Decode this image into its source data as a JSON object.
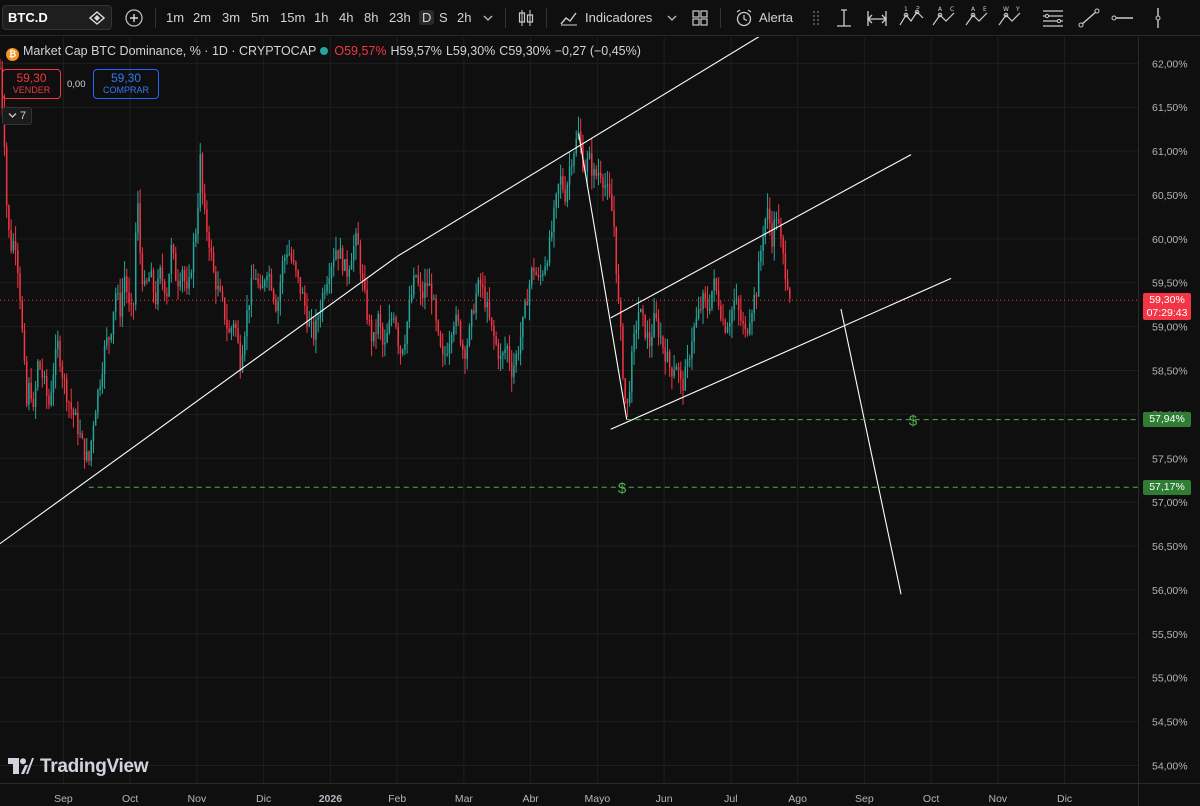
{
  "toolbar": {
    "symbol": "BTC.D",
    "intervals": [
      "1m",
      "2m",
      "3m",
      "5m",
      "15m",
      "1h",
      "4h",
      "8h",
      "23h",
      "D",
      "S",
      "2h"
    ],
    "selected_interval": "D",
    "indicators_label": "Indicadores",
    "alert_label": "Alerta"
  },
  "legend": {
    "title": "Market Cap BTC Dominance, % · 1D · CRYPTOCAP",
    "open": "O59,57%",
    "high": "H59,57%",
    "low": "L59,30%",
    "close": "C59,30%",
    "change": "−0,27 (−0,45%)"
  },
  "trade": {
    "sell_price": "59,30",
    "sell_label": "VENDER",
    "spread": "0,00",
    "buy_price": "59,30",
    "buy_label": "COMPRAR",
    "collapse_count": "7"
  },
  "brand": {
    "logo_text": "TradingView"
  },
  "colors": {
    "up": "#26a69a",
    "down": "#f23645",
    "background": "#0f0f0f",
    "grid": "#1f1f1f",
    "lines": "#ffffff",
    "target": "#4caf50"
  },
  "chart_data": {
    "type": "candlestick",
    "title": "Market Cap BTC Dominance, % · 1D · CRYPTOCAP",
    "y_axis": {
      "ticks": [
        "62,00%",
        "61,50%",
        "61,00%",
        "60,50%",
        "60,00%",
        "59,50%",
        "59,00%",
        "58,50%",
        "58,00%",
        "57,50%",
        "57,00%",
        "56,50%",
        "56,00%",
        "55,50%",
        "55,00%",
        "54,50%",
        "54,00%"
      ],
      "tick_values": [
        62.0,
        61.5,
        61.0,
        60.5,
        60.0,
        59.5,
        59.0,
        58.5,
        58.0,
        57.5,
        57.0,
        56.5,
        56.0,
        55.5,
        55.0,
        54.5,
        54.0
      ],
      "range": [
        53.8,
        62.3
      ]
    },
    "x_axis": {
      "ticks": [
        "Sep",
        "Oct",
        "Nov",
        "Dic",
        "2026",
        "Feb",
        "Mar",
        "Abr",
        "Mayo",
        "Jun",
        "Jul",
        "Ago",
        "Sep",
        "Oct",
        "Nov",
        "Dic"
      ],
      "tick_months": [
        0,
        1,
        2,
        3,
        4,
        5,
        6,
        7,
        8,
        9,
        10,
        11,
        12,
        13,
        14,
        15
      ],
      "range_months": [
        -0.95,
        16.1
      ]
    },
    "last_price": {
      "value": 59.3,
      "label": "59,30%",
      "countdown": "07:29:43"
    },
    "price_targets": [
      {
        "value": 57.94,
        "label": "57,94%",
        "marker": "$"
      },
      {
        "value": 57.17,
        "label": "57,17%",
        "marker": "$"
      }
    ],
    "price_path": [
      [
        -0.95,
        61.95
      ],
      [
        -0.88,
        61.1
      ],
      [
        -0.85,
        60.4
      ],
      [
        -0.8,
        59.9
      ],
      [
        -0.72,
        60.0
      ],
      [
        -0.66,
        59.5
      ],
      [
        -0.6,
        58.7
      ],
      [
        -0.55,
        58.1
      ],
      [
        -0.5,
        58.4
      ],
      [
        -0.45,
        58.0
      ],
      [
        -0.38,
        58.6
      ],
      [
        -0.3,
        58.4
      ],
      [
        -0.22,
        58.1
      ],
      [
        -0.15,
        58.5
      ],
      [
        -0.08,
        58.8
      ],
      [
        0.0,
        58.4
      ],
      [
        0.1,
        58.1
      ],
      [
        0.2,
        57.9
      ],
      [
        0.3,
        57.6
      ],
      [
        0.38,
        57.45
      ],
      [
        0.46,
        58.0
      ],
      [
        0.55,
        58.4
      ],
      [
        0.63,
        58.8
      ],
      [
        0.7,
        58.9
      ],
      [
        0.78,
        59.4
      ],
      [
        0.85,
        59.2
      ],
      [
        0.92,
        59.6
      ],
      [
        1.0,
        59.1
      ],
      [
        1.06,
        59.3
      ],
      [
        1.1,
        60.6
      ],
      [
        1.16,
        59.7
      ],
      [
        1.22,
        59.4
      ],
      [
        1.3,
        59.6
      ],
      [
        1.38,
        59.3
      ],
      [
        1.45,
        59.6
      ],
      [
        1.55,
        59.4
      ],
      [
        1.62,
        59.9
      ],
      [
        1.7,
        59.5
      ],
      [
        1.78,
        59.7
      ],
      [
        1.86,
        59.3
      ],
      [
        1.93,
        59.8
      ],
      [
        2.0,
        60.2
      ],
      [
        2.05,
        60.9
      ],
      [
        2.1,
        60.3
      ],
      [
        2.18,
        60.0
      ],
      [
        2.25,
        59.6
      ],
      [
        2.32,
        59.4
      ],
      [
        2.4,
        59.2
      ],
      [
        2.48,
        58.9
      ],
      [
        2.56,
        59.1
      ],
      [
        2.65,
        58.6
      ],
      [
        2.72,
        59.0
      ],
      [
        2.8,
        59.4
      ],
      [
        2.88,
        59.6
      ],
      [
        2.96,
        59.3
      ],
      [
        3.04,
        59.7
      ],
      [
        3.12,
        59.5
      ],
      [
        3.2,
        59.2
      ],
      [
        3.28,
        59.7
      ],
      [
        3.36,
        59.9
      ],
      [
        3.44,
        59.7
      ],
      [
        3.52,
        59.5
      ],
      [
        3.6,
        59.3
      ],
      [
        3.68,
        59.0
      ],
      [
        3.76,
        58.9
      ],
      [
        3.84,
        59.2
      ],
      [
        3.92,
        59.5
      ],
      [
        4.0,
        59.7
      ],
      [
        4.08,
        59.9
      ],
      [
        4.16,
        59.8
      ],
      [
        4.24,
        59.6
      ],
      [
        4.32,
        59.85
      ],
      [
        4.4,
        60.0
      ],
      [
        4.48,
        59.5
      ],
      [
        4.56,
        59.1
      ],
      [
        4.64,
        58.8
      ],
      [
        4.72,
        59.1
      ],
      [
        4.8,
        58.7
      ],
      [
        4.88,
        59.0
      ],
      [
        4.96,
        59.2
      ],
      [
        5.04,
        58.7
      ],
      [
        5.12,
        58.9
      ],
      [
        5.2,
        59.3
      ],
      [
        5.28,
        59.6
      ],
      [
        5.36,
        59.3
      ],
      [
        5.44,
        59.5
      ],
      [
        5.52,
        59.4
      ],
      [
        5.6,
        58.9
      ],
      [
        5.68,
        58.6
      ],
      [
        5.76,
        58.8
      ],
      [
        5.84,
        59.1
      ],
      [
        5.92,
        59.0
      ],
      [
        6.0,
        58.7
      ],
      [
        6.08,
        58.9
      ],
      [
        6.16,
        59.3
      ],
      [
        6.24,
        59.5
      ],
      [
        6.32,
        59.3
      ],
      [
        6.4,
        59.0
      ],
      [
        6.48,
        58.8
      ],
      [
        6.56,
        58.6
      ],
      [
        6.64,
        58.8
      ],
      [
        6.72,
        58.5
      ],
      [
        6.8,
        58.7
      ],
      [
        6.88,
        59.0
      ],
      [
        6.96,
        59.4
      ],
      [
        7.04,
        59.7
      ],
      [
        7.12,
        59.5
      ],
      [
        7.2,
        59.7
      ],
      [
        7.28,
        59.9
      ],
      [
        7.36,
        60.3
      ],
      [
        7.44,
        60.7
      ],
      [
        7.52,
        60.5
      ],
      [
        7.6,
        60.9
      ],
      [
        7.68,
        61.1
      ],
      [
        7.72,
        61.2
      ],
      [
        7.8,
        60.8
      ],
      [
        7.88,
        60.9
      ],
      [
        7.96,
        60.7
      ],
      [
        8.04,
        60.8
      ],
      [
        8.12,
        60.6
      ],
      [
        8.2,
        60.4
      ],
      [
        8.26,
        60.1
      ],
      [
        8.3,
        59.4
      ],
      [
        8.36,
        58.8
      ],
      [
        8.4,
        58.3
      ],
      [
        8.44,
        58.0
      ],
      [
        8.5,
        58.5
      ],
      [
        8.56,
        58.9
      ],
      [
        8.62,
        59.2
      ],
      [
        8.7,
        59.0
      ],
      [
        8.78,
        58.8
      ],
      [
        8.86,
        59.1
      ],
      [
        8.94,
        58.9
      ],
      [
        9.02,
        58.7
      ],
      [
        9.1,
        58.5
      ],
      [
        9.18,
        58.6
      ],
      [
        9.26,
        58.3
      ],
      [
        9.34,
        58.5
      ],
      [
        9.42,
        58.9
      ],
      [
        9.5,
        59.1
      ],
      [
        9.58,
        59.3
      ],
      [
        9.66,
        59.2
      ],
      [
        9.74,
        59.5
      ],
      [
        9.82,
        59.3
      ],
      [
        9.9,
        59.0
      ],
      [
        9.98,
        59.1
      ],
      [
        10.06,
        59.3
      ],
      [
        10.14,
        59.1
      ],
      [
        10.22,
        58.9
      ],
      [
        10.3,
        59.2
      ],
      [
        10.38,
        59.4
      ],
      [
        10.44,
        59.8
      ],
      [
        10.5,
        60.2
      ],
      [
        10.56,
        60.3
      ],
      [
        10.62,
        60.0
      ],
      [
        10.68,
        60.3
      ],
      [
        10.74,
        60.0
      ],
      [
        10.8,
        59.7
      ],
      [
        10.86,
        59.5
      ],
      [
        10.9,
        59.3
      ]
    ],
    "drawings": [
      {
        "type": "trendline",
        "points": [
          [
            -1.0,
            56.5
          ],
          [
            5.0,
            59.8
          ]
        ]
      },
      {
        "type": "trendline",
        "points": [
          [
            5.0,
            59.8
          ],
          [
            10.5,
            62.34
          ]
        ]
      },
      {
        "type": "trendline",
        "points": [
          [
            7.72,
            61.2
          ],
          [
            8.44,
            57.94
          ]
        ]
      },
      {
        "type": "trendline",
        "points": [
          [
            8.2,
            59.1
          ],
          [
            12.7,
            60.96
          ]
        ]
      },
      {
        "type": "trendline",
        "points": [
          [
            8.2,
            57.83
          ],
          [
            13.3,
            59.55
          ]
        ]
      },
      {
        "type": "trendline",
        "points": [
          [
            11.65,
            59.2
          ],
          [
            12.55,
            55.95
          ]
        ]
      },
      {
        "type": "horizontal",
        "value": 57.94,
        "from": 8.44
      },
      {
        "type": "horizontal",
        "value": 57.17,
        "from": 0.38
      }
    ]
  }
}
